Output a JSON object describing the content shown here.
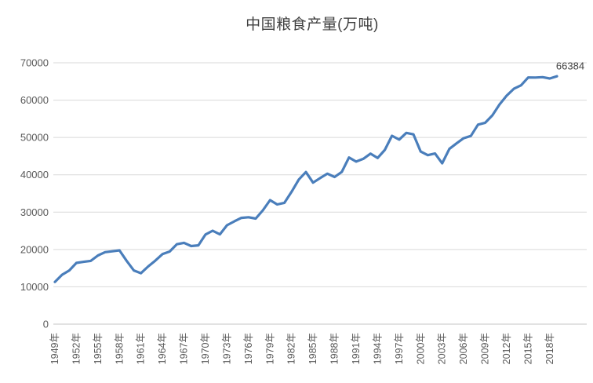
{
  "chart": {
    "title": "中国粮食产量(万吨)",
    "annotation_label": "66384",
    "colors": {
      "line": "#4a7ebb",
      "gridline": "#d9d9d9",
      "axis_line": "#c6c6c6",
      "tick_text": "#595959",
      "title_text": "#3f3f3f"
    }
  },
  "chart_data": {
    "type": "line",
    "title": "中国粮食产量(万吨)",
    "xlabel": "",
    "ylabel": "",
    "legend": "none",
    "grid": "horizontal",
    "ylim": [
      0,
      70000
    ],
    "y_ticks": [
      0,
      10000,
      20000,
      30000,
      40000,
      50000,
      60000,
      70000
    ],
    "y_tick_labels": [
      "0",
      "10000",
      "20000",
      "30000",
      "40000",
      "50000",
      "60000",
      "70000"
    ],
    "x_tick_labels": [
      "1949年",
      "1952年",
      "1955年",
      "1958年",
      "1961年",
      "1964年",
      "1967年",
      "1970年",
      "1973年",
      "1976年",
      "1979年",
      "1982年",
      "1985年",
      "1988年",
      "1991年",
      "1994年",
      "1997年",
      "2000年",
      "2003年",
      "2006年",
      "2009年",
      "2012年",
      "2015年",
      "2018年"
    ],
    "x_tick_step_years": 3,
    "x": [
      1949,
      1950,
      1951,
      1952,
      1953,
      1954,
      1955,
      1956,
      1957,
      1958,
      1959,
      1960,
      1961,
      1962,
      1963,
      1964,
      1965,
      1966,
      1967,
      1968,
      1969,
      1970,
      1971,
      1972,
      1973,
      1974,
      1975,
      1976,
      1977,
      1978,
      1979,
      1980,
      1981,
      1982,
      1983,
      1984,
      1985,
      1986,
      1987,
      1988,
      1989,
      1990,
      1991,
      1992,
      1993,
      1994,
      1995,
      1996,
      1997,
      1998,
      1999,
      2000,
      2001,
      2002,
      2003,
      2004,
      2005,
      2006,
      2007,
      2008,
      2009,
      2010,
      2011,
      2012,
      2013,
      2014,
      2015,
      2016,
      2017,
      2018,
      2019
    ],
    "values": [
      11318,
      13213,
      14369,
      16392,
      16683,
      16952,
      18394,
      19275,
      19505,
      19765,
      16968,
      14385,
      13650,
      15441,
      17000,
      18750,
      19453,
      21400,
      21782,
      20906,
      21097,
      23996,
      25014,
      24048,
      26494,
      27527,
      28452,
      28631,
      28273,
      30477,
      33212,
      32056,
      32502,
      35450,
      38728,
      40731,
      37911,
      39151,
      40298,
      39408,
      40755,
      44624,
      43529,
      44266,
      45649,
      44510,
      46662,
      50454,
      49417,
      51230,
      50839,
      46218,
      45264,
      45706,
      43070,
      46947,
      48402,
      49804,
      50414,
      53434,
      53941,
      55911,
      58849,
      61223,
      63048,
      63965,
      66060,
      66044,
      66161,
      65789,
      66384
    ],
    "annotation": {
      "label": "66384",
      "x": 2019,
      "y": 66384
    }
  }
}
